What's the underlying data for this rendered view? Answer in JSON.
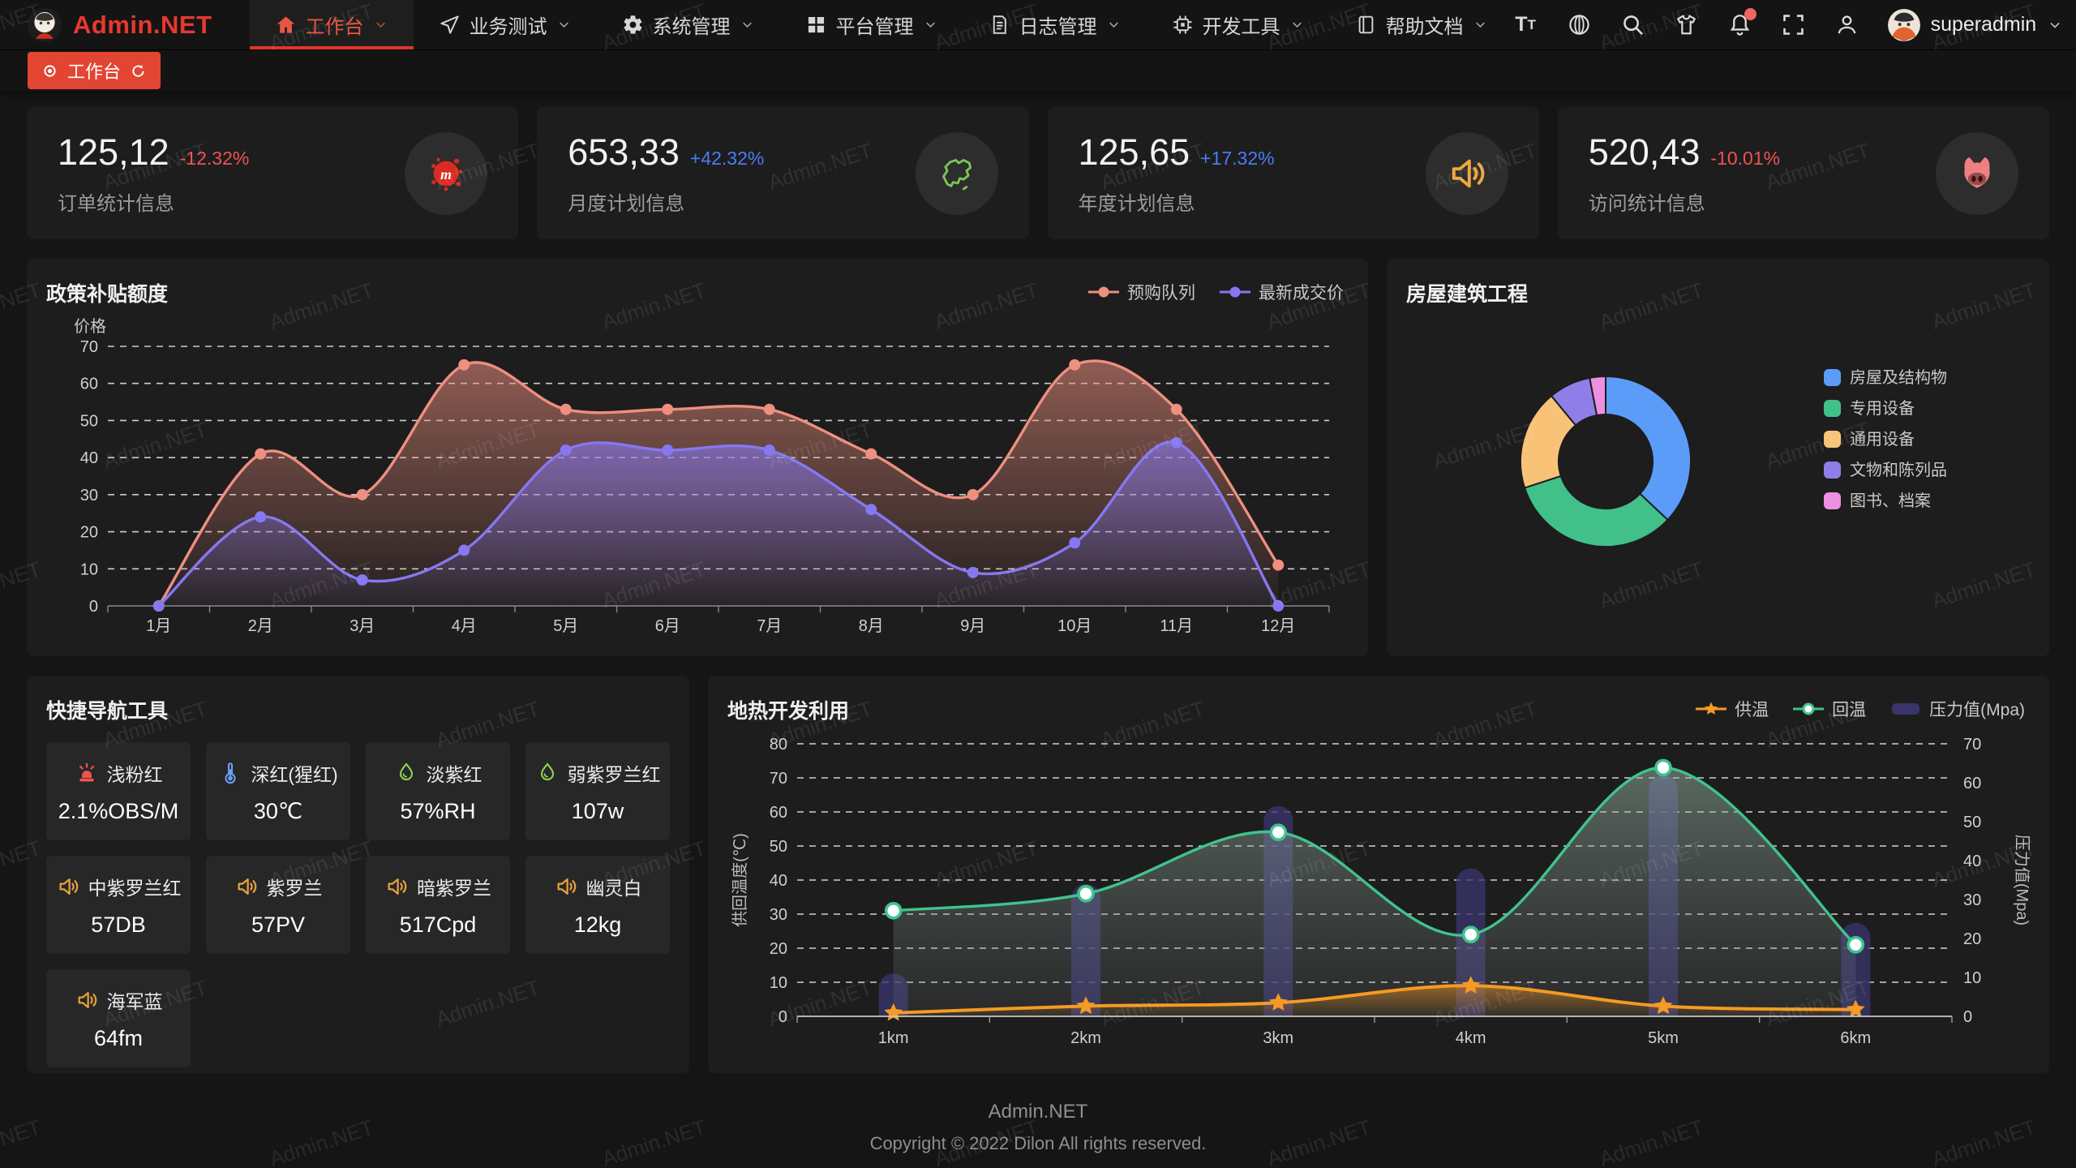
{
  "theme": {
    "accent_red": "#e8382e",
    "tab_red": "#e24532",
    "delta_up_color": "#4a7cf7",
    "delta_down_color": "#ef5350"
  },
  "navbar": {
    "logo_text": "Admin.NET",
    "items": [
      {
        "label": "工作台",
        "icon": "home-icon",
        "active": true
      },
      {
        "label": "业务测试",
        "icon": "navigation-icon",
        "active": false
      },
      {
        "label": "系统管理",
        "icon": "gear-icon",
        "active": false
      },
      {
        "label": "平台管理",
        "icon": "grid-icon",
        "active": false
      },
      {
        "label": "日志管理",
        "icon": "log-icon",
        "active": false
      },
      {
        "label": "开发工具",
        "icon": "chip-icon",
        "active": false
      },
      {
        "label": "帮助文档",
        "icon": "book-icon",
        "active": false
      }
    ],
    "right_icons": [
      {
        "name": "font-size-icon"
      },
      {
        "name": "language-icon"
      },
      {
        "name": "search-icon"
      },
      {
        "name": "theme-tshirt-icon"
      },
      {
        "name": "notification-bell-icon",
        "badge": true
      },
      {
        "name": "fullscreen-icon"
      },
      {
        "name": "profile-icon"
      }
    ],
    "username": "superadmin"
  },
  "tabbar": {
    "tabs": [
      {
        "label": "工作台",
        "active": true
      }
    ]
  },
  "stat_cards": [
    {
      "value": "125,12",
      "delta": "-12.32%",
      "delta_dir": "down",
      "label": "订单统计信息",
      "icon": "paint-splat-icon",
      "icon_color": "#d92b1f"
    },
    {
      "value": "653,33",
      "delta": "+42.32%",
      "delta_dir": "up",
      "label": "月度计划信息",
      "icon": "china-map-icon",
      "icon_color": "#7ac756"
    },
    {
      "value": "125,65",
      "delta": "+17.32%",
      "delta_dir": "up",
      "label": "年度计划信息",
      "icon": "speaker-icon",
      "icon_color": "#f0a73a"
    },
    {
      "value": "520,43",
      "delta": "-10.01%",
      "delta_dir": "down",
      "label": "访问统计信息",
      "icon": "pig-face-icon",
      "icon_color": "#f08080"
    }
  ],
  "chart_data": [
    {
      "id": "subsidy",
      "type": "line",
      "title": "政策补贴额度",
      "ylabel": "价格",
      "categories": [
        "1月",
        "2月",
        "3月",
        "4月",
        "5月",
        "6月",
        "7月",
        "8月",
        "9月",
        "10月",
        "11月",
        "12月"
      ],
      "series": [
        {
          "name": "预购队列",
          "color": "#ee8f7f",
          "values": [
            0,
            41,
            30,
            65,
            53,
            53,
            53,
            41,
            30,
            65,
            53,
            11
          ]
        },
        {
          "name": "最新成交价",
          "color": "#8678f0",
          "values": [
            0,
            24,
            7,
            15,
            42,
            42,
            42,
            26,
            9,
            17,
            44,
            0
          ]
        }
      ],
      "ylim": [
        0,
        70
      ],
      "ytick_step": 10,
      "grid": "dashed",
      "legend_position": "top-right",
      "smooth": true,
      "area": true
    },
    {
      "id": "building",
      "type": "pie",
      "title": "房屋建筑工程",
      "donut": true,
      "slices": [
        {
          "label": "房屋及结构物",
          "value": 37,
          "color": "#5b9cf8"
        },
        {
          "label": "专用设备",
          "value": 33,
          "color": "#41c08a"
        },
        {
          "label": "通用设备",
          "value": 19,
          "color": "#f8c377"
        },
        {
          "label": "文物和陈列品",
          "value": 8,
          "color": "#8f7ee8"
        },
        {
          "label": "图书、档案",
          "value": 3,
          "color": "#ee90e1"
        }
      ],
      "legend_position": "right"
    },
    {
      "id": "geothermal",
      "type": "mixed",
      "title": "地热开发利用",
      "categories": [
        "1km",
        "2km",
        "3km",
        "4km",
        "5km",
        "6km"
      ],
      "ylabel_left": "供回温度(℃)",
      "ylim_left": [
        0,
        80
      ],
      "ytick_step_left": 10,
      "ylabel_right": "压力值(Mpa)",
      "ylim_right": [
        0,
        70
      ],
      "ytick_step_right": 10,
      "grid": "dashed",
      "legend_position": "top-right",
      "series": [
        {
          "name": "供温",
          "type": "line",
          "axis": "left",
          "color": "#f59a23",
          "marker": "star",
          "values": [
            1,
            3,
            4,
            9,
            3,
            2
          ]
        },
        {
          "name": "回温",
          "type": "line",
          "axis": "left",
          "color": "#3fc48c",
          "marker": "circle",
          "values": [
            31,
            36,
            54,
            24,
            73,
            21
          ]
        },
        {
          "name": "压力值(Mpa)",
          "type": "bar",
          "axis": "right",
          "color": "#39346c",
          "values": [
            11,
            34,
            54,
            38,
            62,
            24
          ]
        }
      ]
    }
  ],
  "quicknav": {
    "title": "快捷导航工具",
    "items": [
      {
        "name": "浅粉红",
        "value": "2.1%OBS/M",
        "icon": "alarm-icon",
        "icon_color": "#ef5350"
      },
      {
        "name": "深红(猩红)",
        "value": "30℃",
        "icon": "thermometer-icon",
        "icon_color": "#6b9bf2"
      },
      {
        "name": "淡紫红",
        "value": "57%RH",
        "icon": "humidity-icon",
        "icon_color": "#8fd14f"
      },
      {
        "name": "弱紫罗兰红",
        "value": "107w",
        "icon": "humidity-icon",
        "icon_color": "#8fd14f"
      },
      {
        "name": "中紫罗兰红",
        "value": "57DB",
        "icon": "speaker-icon",
        "icon_color": "#e6a23c"
      },
      {
        "name": "紫罗兰",
        "value": "57PV",
        "icon": "speaker-icon",
        "icon_color": "#e6a23c"
      },
      {
        "name": "暗紫罗兰",
        "value": "517Cpd",
        "icon": "speaker-icon",
        "icon_color": "#e6a23c"
      },
      {
        "name": "幽灵白",
        "value": "12kg",
        "icon": "speaker-icon",
        "icon_color": "#e6a23c"
      },
      {
        "name": "海军蓝",
        "value": "64fm",
        "icon": "speaker-icon",
        "icon_color": "#e6a23c"
      }
    ]
  },
  "footer": {
    "brand": "Admin.NET",
    "copyright": "Copyright © 2022 Dilon All rights reserved."
  },
  "watermark": {
    "text": "Admin.NET"
  }
}
